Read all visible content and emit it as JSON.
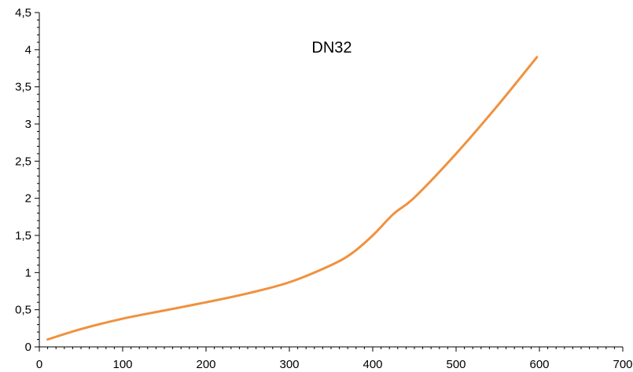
{
  "chart_data": {
    "type": "line",
    "title": "DN32",
    "xlabel": "",
    "ylabel": "",
    "xlim": [
      0,
      700
    ],
    "ylim": [
      0,
      4.5
    ],
    "x_ticks": [
      0,
      100,
      200,
      300,
      400,
      500,
      600,
      700
    ],
    "x_tick_labels": [
      "0",
      "100",
      "200",
      "300",
      "400",
      "500",
      "600",
      "700"
    ],
    "y_ticks": [
      0,
      0.5,
      1,
      1.5,
      2,
      2.5,
      3,
      3.5,
      4,
      4.5
    ],
    "y_tick_labels": [
      "0",
      "0,5",
      "1",
      "1,5",
      "2",
      "2,5",
      "3",
      "3,5",
      "4",
      "4,5"
    ],
    "grid": false,
    "legend": "none",
    "series": [
      {
        "color": "#f0913e",
        "x": [
          10,
          50,
          100,
          150,
          200,
          250,
          300,
          350,
          375,
          400,
          425,
          450,
          500,
          550,
          597
        ],
        "y": [
          0.1,
          0.24,
          0.38,
          0.49,
          0.6,
          0.72,
          0.87,
          1.1,
          1.26,
          1.5,
          1.79,
          2.01,
          2.6,
          3.25,
          3.9
        ]
      }
    ]
  }
}
